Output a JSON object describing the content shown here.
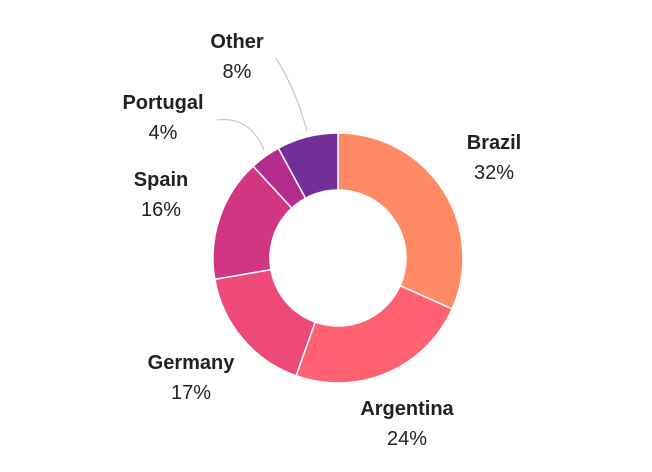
{
  "chart_data": {
    "type": "pie",
    "variant": "donut",
    "legend": "none",
    "slices": [
      {
        "label": "Brazil",
        "value": 32,
        "value_label": "32%",
        "color": "#ff8a65"
      },
      {
        "label": "Argentina",
        "value": 24,
        "value_label": "24%",
        "color": "#ff6170"
      },
      {
        "label": "Germany",
        "value": 17,
        "value_label": "17%",
        "color": "#ed4a7a"
      },
      {
        "label": "Spain",
        "value": 16,
        "value_label": "16%",
        "color": "#d23582"
      },
      {
        "label": "Portugal",
        "value": 4,
        "value_label": "4%",
        "color": "#b52c8e"
      },
      {
        "label": "Other",
        "value": 8,
        "value_label": "8%",
        "color": "#732e98"
      }
    ]
  }
}
